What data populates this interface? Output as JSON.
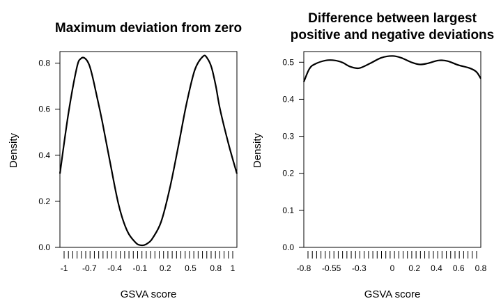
{
  "chart_data": [
    {
      "type": "line",
      "title": "Maximum deviation from zero",
      "xlabel": "GSVA score",
      "ylabel": "Density",
      "xlim": [
        -1.05,
        1.05
      ],
      "ylim": [
        0,
        0.82
      ],
      "xticks": [
        -1,
        -0.7,
        -0.4,
        -0.1,
        0.2,
        0.5,
        0.8,
        1
      ],
      "xtick_labels": [
        "-1",
        "-0.7",
        "-0.4",
        "-0.1",
        "0.2",
        "0.5",
        "0.8",
        "1"
      ],
      "yticks": [
        0.0,
        0.2,
        0.4,
        0.6,
        0.8
      ],
      "ytick_labels": [
        "0.0",
        "0.2",
        "0.4",
        "0.6",
        "0.8"
      ],
      "rug": true,
      "series": [
        {
          "x": [
            -1.05,
            -0.95,
            -0.85,
            -0.8,
            -0.75,
            -0.7,
            -0.65,
            -0.55,
            -0.45,
            -0.35,
            -0.25,
            -0.15,
            -0.1,
            -0.05,
            0.0,
            0.05,
            0.15,
            0.25,
            0.35,
            0.45,
            0.55,
            0.65,
            0.7,
            0.75,
            0.8,
            0.85,
            0.95,
            1.05
          ],
          "y": [
            0.32,
            0.58,
            0.78,
            0.82,
            0.82,
            0.79,
            0.72,
            0.55,
            0.36,
            0.18,
            0.07,
            0.02,
            0.01,
            0.01,
            0.02,
            0.04,
            0.11,
            0.25,
            0.43,
            0.62,
            0.77,
            0.83,
            0.82,
            0.78,
            0.7,
            0.6,
            0.45,
            0.32
          ]
        }
      ]
    },
    {
      "type": "line",
      "title": "Difference between largest positive and negative deviations",
      "title_lines": [
        "Difference between largest",
        "positive and negative deviations"
      ],
      "xlabel": "GSVA score",
      "ylabel": "Density",
      "xlim": [
        -0.8,
        0.8
      ],
      "ylim": [
        0,
        0.51
      ],
      "xticks": [
        -0.8,
        -0.55,
        -0.3,
        0,
        0.2,
        0.4,
        0.6,
        0.8
      ],
      "xtick_labels": [
        "-0.8",
        "-0.55",
        "-0.3",
        "0",
        "0.2",
        "0.4",
        "0.6",
        "0.8"
      ],
      "yticks": [
        0.0,
        0.1,
        0.2,
        0.3,
        0.4,
        0.5
      ],
      "ytick_labels": [
        "0.0",
        "0.1",
        "0.2",
        "0.3",
        "0.4",
        "0.5"
      ],
      "rug": true,
      "series": [
        {
          "x": [
            -0.8,
            -0.75,
            -0.7,
            -0.6,
            -0.52,
            -0.45,
            -0.38,
            -0.3,
            -0.2,
            -0.1,
            0.0,
            0.08,
            0.18,
            0.25,
            0.32,
            0.42,
            0.5,
            0.6,
            0.7,
            0.76,
            0.8
          ],
          "y": [
            0.447,
            0.482,
            0.495,
            0.505,
            0.505,
            0.499,
            0.488,
            0.484,
            0.497,
            0.512,
            0.517,
            0.512,
            0.499,
            0.494,
            0.497,
            0.505,
            0.503,
            0.492,
            0.484,
            0.474,
            0.456
          ]
        }
      ]
    }
  ]
}
